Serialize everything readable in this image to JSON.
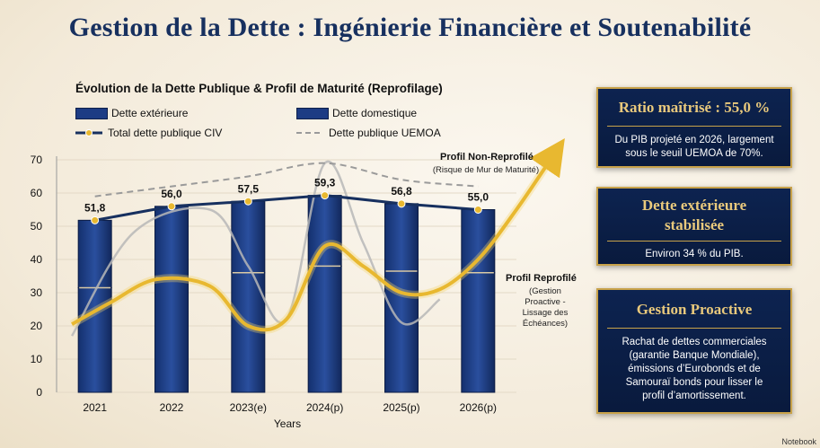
{
  "title": "Gestion de la Dette : Ingénierie Financière et Soutenabilité",
  "legend": {
    "ext": "Dette extérieure",
    "dom": "Dette domestique",
    "total": "Total dette publique CIV",
    "uemoa": "Dette publique UEMOA"
  },
  "annotations": {
    "non_reprofile_title": "Profil Non-Reprofilé",
    "non_reprofile_sub": "(Risque de Mur de Maturité)",
    "reprofile_title": "Profil Reprofilé",
    "reprofile_sub": [
      "(Gestion",
      "Proactive -",
      "Lissage des",
      "Échéances)"
    ]
  },
  "cards": [
    {
      "title": "Ratio maîtrisé : 55,0 %",
      "body": [
        "Du PIB projeté en 2026, largement",
        "sous le seuil UEMOA de 70%."
      ]
    },
    {
      "title": [
        "Dette extérieure",
        "stabilisée"
      ],
      "body": [
        "Environ 34 % du PIB."
      ]
    },
    {
      "title": "Gestion Proactive",
      "body": [
        "Rachat de dettes commerciales",
        "(garantie Banque Mondiale),",
        "émissions d’Eurobonds et de",
        "Samouraï bonds pour lisser le",
        "profil d’amortissement."
      ]
    }
  ],
  "watermark": "Notebook",
  "colors": {
    "navy": "#17305f",
    "bar": "#1d3c84",
    "gold": "#e8b830",
    "gray": "#a9a9a9"
  },
  "chart_data": {
    "type": "bar",
    "title": "Évolution de la Dette Publique & Profil de Maturité (Reprofilage)",
    "xlabel": "Years",
    "ylabel": "",
    "ylim": [
      0,
      70
    ],
    "yticks": [
      0,
      10,
      20,
      30,
      40,
      50,
      60,
      70
    ],
    "categories": [
      "2021",
      "2022",
      "2023(e)",
      "2024(p)",
      "2025(p)",
      "2026(p)"
    ],
    "stacked": true,
    "series": [
      {
        "name": "Dette extérieure",
        "type": "bar",
        "values": [
          31.5,
          34.5,
          36,
          38,
          36.5,
          36
        ]
      },
      {
        "name": "Dette domestique",
        "type": "bar",
        "values": [
          20.3,
          21.5,
          21.5,
          21.3,
          20.3,
          19
        ]
      },
      {
        "name": "Total dette publique CIV",
        "type": "line",
        "values": [
          51.8,
          56.0,
          57.5,
          59.3,
          56.8,
          55.0
        ],
        "labels": [
          "51,8",
          "56,0",
          "57,5",
          "59,3",
          "56,8",
          "55,0"
        ]
      },
      {
        "name": "Dette publique UEMOA",
        "type": "line",
        "style": "dashed",
        "values": [
          59,
          62,
          65,
          69,
          64,
          62
        ]
      }
    ],
    "curves": [
      {
        "name": "Profil Non-Reprofilé",
        "x": [
          2020.7,
          2021.5,
          2022.5,
          2023,
          2023.5,
          2024,
          2024.5,
          2025,
          2025.5
        ],
        "y": [
          17,
          48,
          55,
          38,
          22,
          69,
          45,
          21,
          28
        ]
      },
      {
        "name": "Profil Reprofilé",
        "x": [
          2020.7,
          2021.2,
          2021.8,
          2022.5,
          2023,
          2023.5,
          2024,
          2024.5,
          2025,
          2025.5,
          2026,
          2026.5,
          2027
        ],
        "y": [
          20.5,
          27,
          34,
          32,
          20,
          22,
          44,
          38,
          30,
          31,
          40,
          55,
          72
        ]
      }
    ]
  }
}
